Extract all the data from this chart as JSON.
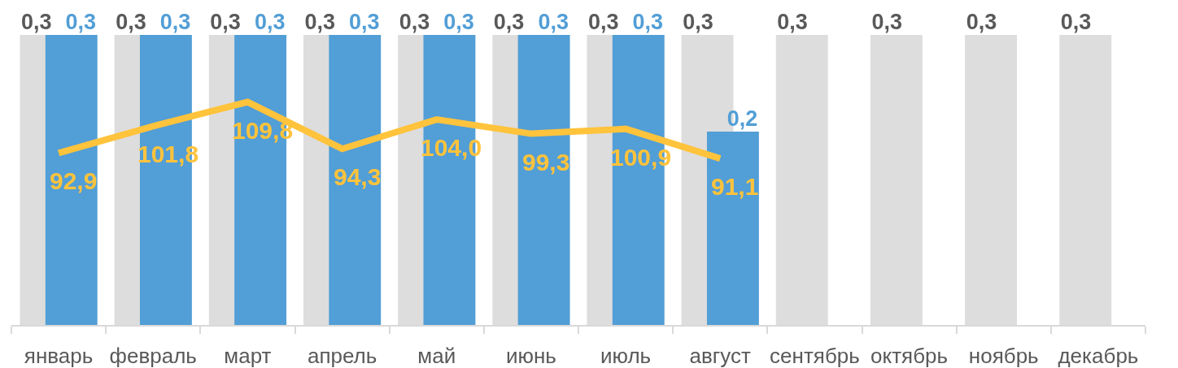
{
  "chart_data": {
    "type": "bar",
    "categories": [
      "январь",
      "февраль",
      "март",
      "апрель",
      "май",
      "июнь",
      "июль",
      "август",
      "сентябрь",
      "октябрь",
      "ноябрь",
      "декабрь"
    ],
    "series": [
      {
        "color": "#dddddd",
        "values": [
          0.3,
          0.3,
          0.3,
          0.3,
          0.3,
          0.3,
          0.3,
          0.3,
          0.3,
          0.3,
          0.3,
          0.3
        ],
        "value_labels": [
          "0,3",
          "0,3",
          "0,3",
          "0,3",
          "0,3",
          "0,3",
          "0,3",
          "0,3",
          "0,3",
          "0,3",
          "0,3",
          "0,3"
        ]
      },
      {
        "color": "#529ed6",
        "values": [
          0.3,
          0.3,
          0.3,
          0.3,
          0.3,
          0.3,
          0.3,
          0.2,
          null,
          null,
          null,
          null
        ],
        "value_labels": [
          "0,3",
          "0,3",
          "0,3",
          "0,3",
          "0,3",
          "0,3",
          "0,3",
          "0,2",
          null,
          null,
          null,
          null
        ]
      },
      {
        "type": "line",
        "axis": "y2",
        "color": "#ffc33c",
        "values": [
          92.9,
          101.8,
          109.8,
          94.3,
          104.0,
          99.3,
          100.9,
          91.1,
          null,
          null,
          null,
          null
        ],
        "value_labels": [
          "92,9",
          "101,8",
          "109,8",
          "94,3",
          "104,0",
          "99,3",
          "100,9",
          "91,1",
          null,
          null,
          null,
          null
        ]
      }
    ],
    "ylim": [
      0,
      0.3
    ],
    "y2lim": [
      36,
      132
    ],
    "tick_labels": "x"
  }
}
